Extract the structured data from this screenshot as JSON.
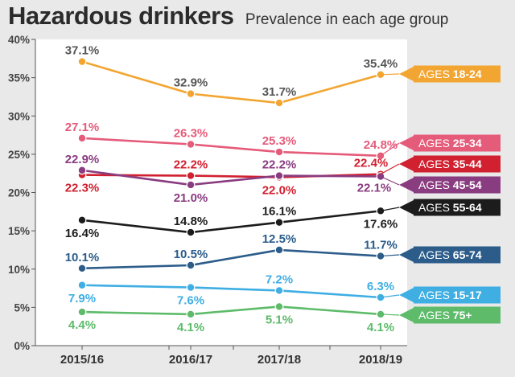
{
  "header": {
    "title": "Hazardous drinkers",
    "subtitle": "Prevalence in each age group"
  },
  "chart_data": {
    "type": "line",
    "title": "Hazardous drinkers",
    "subtitle": "Prevalence in each age group",
    "xlabel": "",
    "ylabel": "",
    "categories": [
      "2015/16",
      "2016/17",
      "2017/18",
      "2018/19"
    ],
    "ylim": [
      0,
      40
    ],
    "yticks": [
      "0%",
      "5%",
      "10%",
      "15%",
      "20%",
      "25%",
      "30%",
      "35%",
      "40%"
    ],
    "grid": false,
    "legend": "right, inline labels at line ends",
    "series": [
      {
        "name": "AGES 18-24",
        "tag_prefix": "AGES ",
        "tag_range": "18-24",
        "color": "#f2a531",
        "values": [
          37.1,
          32.9,
          31.7,
          35.4
        ],
        "labels": [
          "37.1%",
          "32.9%",
          "31.7%",
          "35.4%"
        ],
        "label_color": "#555555",
        "label_pos": [
          "above",
          "above",
          "above",
          "above"
        ]
      },
      {
        "name": "AGES 25-34",
        "tag_prefix": "AGES ",
        "tag_range": "25-34",
        "color": "#e55b7a",
        "values": [
          27.1,
          26.3,
          25.3,
          24.8
        ],
        "labels": [
          "27.1%",
          "26.3%",
          "25.3%",
          "24.8%"
        ],
        "label_color": "#e55b7a",
        "label_pos": [
          "above",
          "above",
          "above",
          "above"
        ]
      },
      {
        "name": "AGES 35-44",
        "tag_prefix": "AGES ",
        "tag_range": "35-44",
        "color": "#d1202f",
        "values": [
          22.3,
          22.2,
          22.0,
          22.4
        ],
        "labels": [
          "22.3%",
          "22.2%",
          "22.0%",
          "22.4%"
        ],
        "label_color": "#d1202f",
        "label_pos": [
          "below",
          "above",
          "below",
          "above-left"
        ]
      },
      {
        "name": "AGES 45-54",
        "tag_prefix": "AGES ",
        "tag_range": "45-54",
        "color": "#8a3c80",
        "values": [
          22.9,
          21.0,
          22.2,
          22.1
        ],
        "labels": [
          "22.9%",
          "21.0%",
          "22.2%",
          "22.1%"
        ],
        "label_color": "#8a3c80",
        "label_pos": [
          "above",
          "below",
          "above",
          "below-left"
        ]
      },
      {
        "name": "AGES 55-64",
        "tag_prefix": "AGES ",
        "tag_range": "55-64",
        "color": "#1c1c1c",
        "values": [
          16.4,
          14.8,
          16.1,
          17.6
        ],
        "labels": [
          "16.4%",
          "14.8%",
          "16.1%",
          "17.6%"
        ],
        "label_color": "#1c1c1c",
        "label_pos": [
          "below",
          "above",
          "above",
          "below"
        ]
      },
      {
        "name": "AGES 65-74",
        "tag_prefix": "AGES ",
        "tag_range": "65-74",
        "color": "#2b5c8a",
        "values": [
          10.1,
          10.5,
          12.5,
          11.7
        ],
        "labels": [
          "10.1%",
          "10.5%",
          "12.5%",
          "11.7%"
        ],
        "label_color": "#2b5c8a",
        "label_pos": [
          "above",
          "above",
          "above",
          "above"
        ]
      },
      {
        "name": "AGES 15-17",
        "tag_prefix": "AGES ",
        "tag_range": "15-17",
        "color": "#3eaee3",
        "values": [
          7.9,
          7.6,
          7.2,
          6.3
        ],
        "labels": [
          "7.9%",
          "7.6%",
          "7.2%",
          "6.3%"
        ],
        "label_color": "#3eaee3",
        "label_pos": [
          "below",
          "below",
          "above",
          "above"
        ]
      },
      {
        "name": "AGES 75+",
        "tag_prefix": "AGES ",
        "tag_range": "75+",
        "color": "#5dbb6a",
        "values": [
          4.4,
          4.1,
          5.1,
          4.1
        ],
        "labels": [
          "4.4%",
          "4.1%",
          "5.1%",
          "4.1%"
        ],
        "label_color": "#5dbb6a",
        "label_pos": [
          "below",
          "below",
          "below",
          "below"
        ]
      }
    ]
  }
}
